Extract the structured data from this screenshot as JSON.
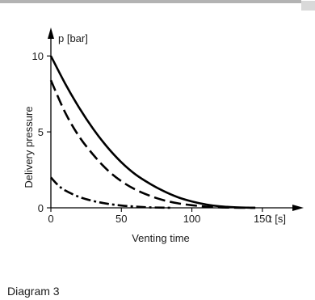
{
  "caption": "Diagram 3",
  "chart_data": {
    "type": "line",
    "ylabel": "Delivery pressure",
    "ylabel_unit": "p [bar]",
    "xlabel": "Venting time",
    "xlabel_unit": "t [s]",
    "xlim": [
      0,
      165
    ],
    "ylim": [
      0,
      11.5
    ],
    "x_ticks": [
      0,
      50,
      100,
      150
    ],
    "y_ticks": [
      0,
      5,
      10
    ],
    "grid": false,
    "series": [
      {
        "style": "solid",
        "x": [
          0,
          10,
          20,
          30,
          40,
          50,
          60,
          70,
          80,
          90,
          100,
          110,
          120,
          130,
          140,
          145
        ],
        "values": [
          10,
          8.2,
          6.6,
          5.2,
          4.0,
          3.0,
          2.2,
          1.6,
          1.1,
          0.7,
          0.42,
          0.22,
          0.1,
          0.04,
          0.01,
          0
        ]
      },
      {
        "style": "dashed",
        "x": [
          0,
          10,
          20,
          30,
          40,
          50,
          60,
          70,
          80,
          90,
          100,
          110,
          120,
          130,
          140,
          145
        ],
        "values": [
          8.4,
          6.3,
          4.7,
          3.5,
          2.5,
          1.75,
          1.2,
          0.8,
          0.5,
          0.3,
          0.17,
          0.08,
          0.03,
          0.01,
          0,
          0
        ]
      },
      {
        "style": "dash-dot",
        "x": [
          0,
          5,
          10,
          20,
          30,
          40,
          50,
          60,
          70,
          80,
          85
        ],
        "values": [
          2.0,
          1.5,
          1.15,
          0.72,
          0.45,
          0.27,
          0.15,
          0.08,
          0.03,
          0.01,
          0
        ]
      }
    ]
  }
}
